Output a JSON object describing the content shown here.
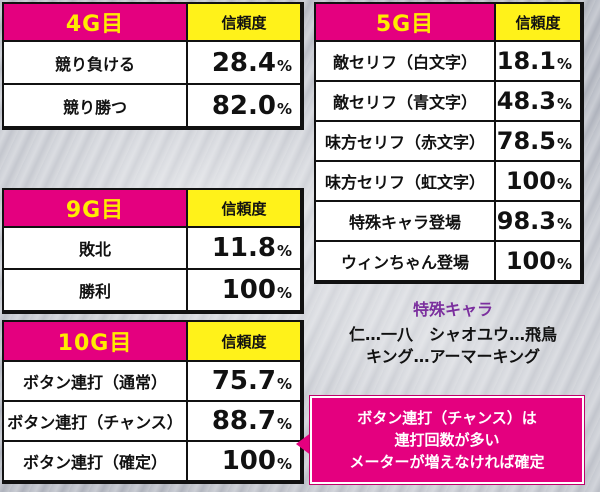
{
  "colors": {
    "header_magenta": "#e4007f",
    "header_yellow": "#fff21a",
    "note_purple": "#7b2f9e"
  },
  "tables": {
    "g4": {
      "title": "4G目",
      "reliability_header": "信頼度",
      "rows": [
        {
          "label": "競り負ける",
          "value": "28.4",
          "unit": "%"
        },
        {
          "label": "競り勝つ",
          "value": "82.0",
          "unit": "%"
        }
      ]
    },
    "g5": {
      "title": "5G目",
      "reliability_header": "信頼度",
      "rows": [
        {
          "label": "敵セリフ（白文字）",
          "value": "18.1",
          "unit": "%"
        },
        {
          "label": "敵セリフ（青文字）",
          "value": "48.3",
          "unit": "%"
        },
        {
          "label": "味方セリフ（赤文字）",
          "value": "78.5",
          "unit": "%"
        },
        {
          "label": "味方セリフ（虹文字）",
          "value": "100",
          "unit": "%"
        },
        {
          "label": "特殊キャラ登場",
          "value": "98.3",
          "unit": "%"
        },
        {
          "label": "ウィンちゃん登場",
          "value": "100",
          "unit": "%"
        }
      ]
    },
    "g9": {
      "title": "9G目",
      "reliability_header": "信頼度",
      "rows": [
        {
          "label": "敗北",
          "value": "11.8",
          "unit": "%"
        },
        {
          "label": "勝利",
          "value": "100",
          "unit": "%"
        }
      ]
    },
    "g10": {
      "title": "10G目",
      "reliability_header": "信頼度",
      "rows": [
        {
          "label": "ボタン連打（通常）",
          "value": "75.7",
          "unit": "%"
        },
        {
          "label": "ボタン連打（チャンス）",
          "value": "88.7",
          "unit": "%"
        },
        {
          "label": "ボタン連打（確定）",
          "value": "100",
          "unit": "%"
        }
      ]
    }
  },
  "special_chara_note": {
    "title": "特殊キャラ",
    "lines": [
      "仁…一八　シャオユウ…飛鳥",
      "キング…アーマーキング"
    ]
  },
  "callout": {
    "lines": [
      "ボタン連打（チャンス）は",
      "連打回数が多い",
      "メーターが増えなければ確定"
    ]
  }
}
